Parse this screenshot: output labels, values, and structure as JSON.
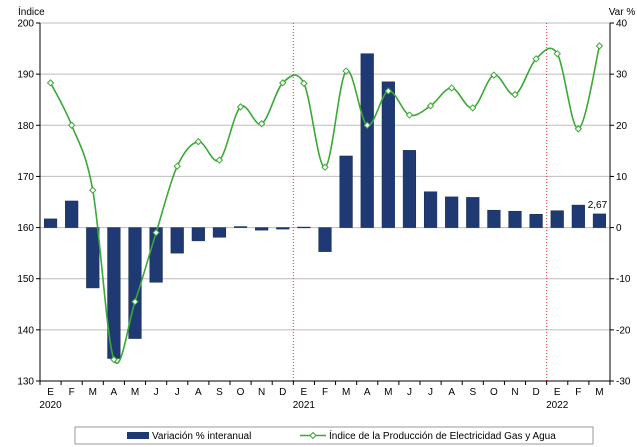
{
  "chart_data": {
    "type": "bar",
    "x": {
      "months": [
        "E",
        "F",
        "M",
        "A",
        "M",
        "J",
        "J",
        "A",
        "S",
        "O",
        "N",
        "D",
        "E",
        "F",
        "M",
        "A",
        "M",
        "J",
        "J",
        "A",
        "S",
        "O",
        "N",
        "D",
        "E",
        "F",
        "M"
      ],
      "years": [
        {
          "label": "2020",
          "index": 0
        },
        {
          "label": "2021",
          "index": 12
        },
        {
          "label": "2022",
          "index": 24
        }
      ],
      "year_breaks": [
        12,
        24
      ]
    },
    "y_left": {
      "label": "Índice",
      "range": [
        130,
        200
      ],
      "ticks": [
        130,
        140,
        150,
        160,
        170,
        180,
        190,
        200
      ]
    },
    "y_right": {
      "label": "Var %",
      "range": [
        -30,
        40
      ],
      "ticks": [
        -30,
        -20,
        -10,
        0,
        10,
        20,
        30,
        40
      ]
    },
    "grid": true,
    "legend_position": "bottom",
    "series": [
      {
        "name": "Variación % interanual",
        "type": "bar",
        "axis": "right",
        "color": "#1f3a73",
        "values": [
          1.7,
          5.2,
          -11.8,
          -25.6,
          -21.7,
          -10.7,
          -5.0,
          -2.6,
          -1.9,
          0.2,
          -0.5,
          -0.3,
          0.1,
          -4.7,
          14.0,
          34.0,
          28.5,
          15.1,
          7.0,
          6.0,
          5.9,
          3.4,
          3.2,
          2.6,
          3.3,
          4.4,
          2.67
        ],
        "data_labels": [
          {
            "index": 26,
            "text": "2,67"
          }
        ]
      },
      {
        "name": "Índice de la Producción de Electricidad Gas y Agua",
        "type": "line",
        "axis": "left",
        "color": "#3aa935",
        "values": [
          188.3,
          180.0,
          167.3,
          134.2,
          145.5,
          159.0,
          172.0,
          176.8,
          173.2,
          183.6,
          180.3,
          188.3,
          188.2,
          171.8,
          190.6,
          180.0,
          186.7,
          182.0,
          183.8,
          187.3,
          183.4,
          189.8,
          186.0,
          193.0,
          194.0,
          179.3,
          195.5
        ]
      }
    ]
  }
}
